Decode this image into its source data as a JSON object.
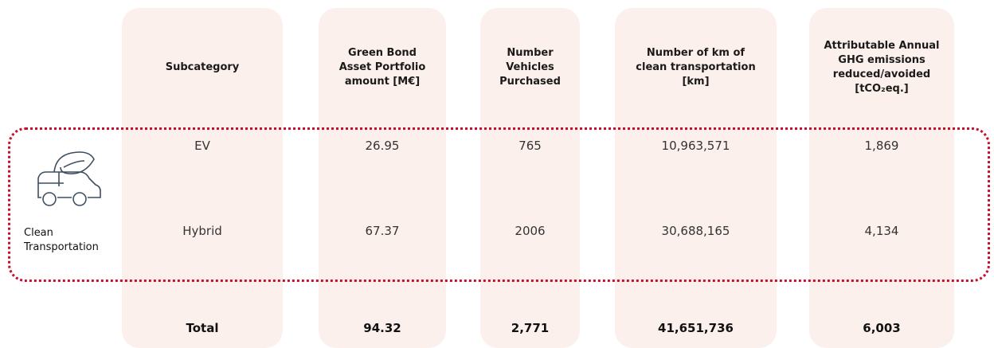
{
  "table": {
    "headers": [
      [
        "Subcategory"
      ],
      [
        "Green Bond",
        "Asset Portfolio",
        "amount [M€]"
      ],
      [
        "Number",
        "Vehicles",
        "Purchased"
      ],
      [
        "Number of km of",
        "clean transportation",
        "[km]"
      ],
      [
        "Attributable Annual",
        "GHG emissions",
        "reduced/avoided",
        "[tCO₂eq.]"
      ]
    ],
    "category": "Clean Transportation",
    "rows": [
      [
        "EV",
        "26.95",
        "765",
        "10,963,571",
        "1,869"
      ],
      [
        "Hybrid",
        "67.37",
        "2006",
        "30,688,165",
        "4,134"
      ]
    ],
    "total": [
      "Total",
      "94.32",
      "2,771",
      "41,651,736",
      "6,003"
    ]
  }
}
